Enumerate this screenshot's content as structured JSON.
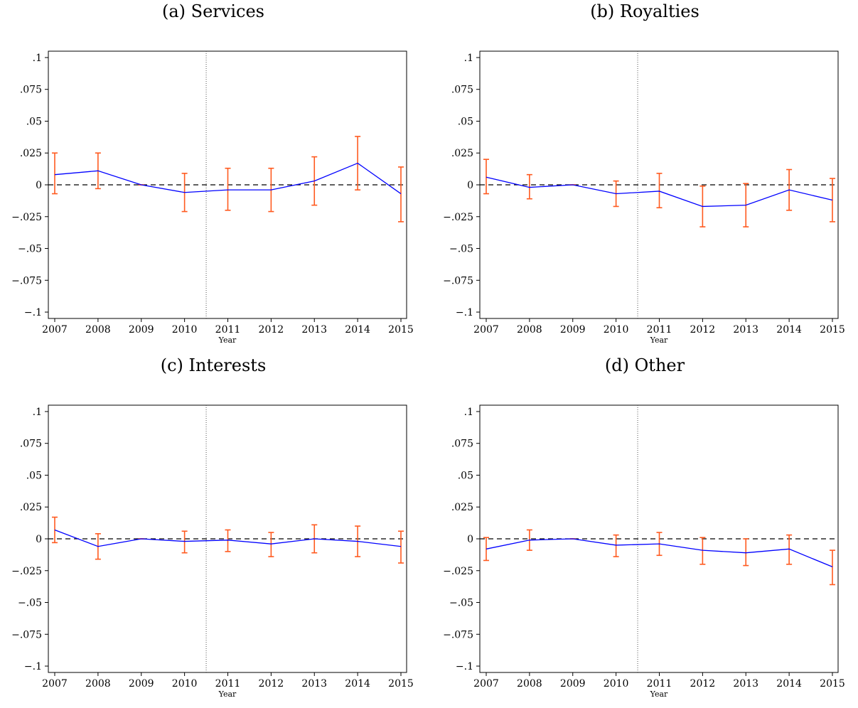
{
  "colors": {
    "line": "#0000ff",
    "error_bar": "#ff5a1f",
    "zero_line": "#000000",
    "event_line": "#555555"
  },
  "chart_data": [
    {
      "type": "line",
      "title": "(a) Services",
      "xlabel": "Year",
      "ylabel": "",
      "categories": [
        "2007",
        "2008",
        "2009",
        "2010",
        "2011",
        "2012",
        "2013",
        "2014",
        "2015"
      ],
      "y_ticks": [
        ".1",
        ".075",
        ".05",
        ".025",
        "0",
        "−.025",
        "−.05",
        "−.075",
        "−.1"
      ],
      "ylim": [
        -0.105,
        0.105
      ],
      "reference_lines": {
        "horizontal_dashed_at": 0,
        "vertical_dotted_between": [
          "2010",
          "2011"
        ]
      },
      "series": [
        {
          "values": [
            0.008,
            0.011,
            0.0,
            -0.006,
            -0.004,
            -0.004,
            0.003,
            0.017,
            -0.007
          ],
          "ci_low": [
            -0.007,
            -0.003,
            0.0,
            -0.021,
            -0.02,
            -0.021,
            -0.016,
            -0.004,
            -0.029
          ],
          "ci_high": [
            0.025,
            0.025,
            0.0,
            0.009,
            0.013,
            0.013,
            0.022,
            0.038,
            0.014
          ]
        }
      ],
      "grid": false,
      "legend": "none"
    },
    {
      "type": "line",
      "title": "(b) Royalties",
      "xlabel": "Year",
      "ylabel": "",
      "categories": [
        "2007",
        "2008",
        "2009",
        "2010",
        "2011",
        "2012",
        "2013",
        "2014",
        "2015"
      ],
      "y_ticks": [
        ".1",
        ".075",
        ".05",
        ".025",
        "0",
        "−.025",
        "−.05",
        "−.075",
        "−.1"
      ],
      "ylim": [
        -0.105,
        0.105
      ],
      "reference_lines": {
        "horizontal_dashed_at": 0,
        "vertical_dotted_between": [
          "2010",
          "2011"
        ]
      },
      "series": [
        {
          "values": [
            0.006,
            -0.002,
            0.0,
            -0.007,
            -0.005,
            -0.017,
            -0.016,
            -0.004,
            -0.012
          ],
          "ci_low": [
            -0.007,
            -0.011,
            0.0,
            -0.017,
            -0.018,
            -0.033,
            -0.033,
            -0.02,
            -0.029
          ],
          "ci_high": [
            0.02,
            0.008,
            0.0,
            0.003,
            0.009,
            -0.001,
            0.001,
            0.012,
            0.005
          ]
        }
      ],
      "grid": false,
      "legend": "none"
    },
    {
      "type": "line",
      "title": "(c) Interests",
      "xlabel": "Year",
      "ylabel": "",
      "categories": [
        "2007",
        "2008",
        "2009",
        "2010",
        "2011",
        "2012",
        "2013",
        "2014",
        "2015"
      ],
      "y_ticks": [
        ".1",
        ".075",
        ".05",
        ".025",
        "0",
        "−.025",
        "−.05",
        "−.075",
        "−.1"
      ],
      "ylim": [
        -0.105,
        0.105
      ],
      "reference_lines": {
        "horizontal_dashed_at": 0,
        "vertical_dotted_between": [
          "2010",
          "2011"
        ]
      },
      "series": [
        {
          "values": [
            0.007,
            -0.006,
            0.0,
            -0.002,
            -0.001,
            -0.004,
            0.0,
            -0.002,
            -0.006
          ],
          "ci_low": [
            -0.003,
            -0.016,
            0.0,
            -0.011,
            -0.01,
            -0.014,
            -0.011,
            -0.014,
            -0.019
          ],
          "ci_high": [
            0.017,
            0.004,
            0.0,
            0.006,
            0.007,
            0.005,
            0.011,
            0.01,
            0.006
          ]
        }
      ],
      "grid": false,
      "legend": "none"
    },
    {
      "type": "line",
      "title": "(d) Other",
      "xlabel": "Year",
      "ylabel": "",
      "categories": [
        "2007",
        "2008",
        "2009",
        "2010",
        "2011",
        "2012",
        "2013",
        "2014",
        "2015"
      ],
      "y_ticks": [
        ".1",
        ".075",
        ".05",
        ".025",
        "0",
        "−.025",
        "−.05",
        "−.075",
        "−.1"
      ],
      "ylim": [
        -0.105,
        0.105
      ],
      "reference_lines": {
        "horizontal_dashed_at": 0,
        "vertical_dotted_between": [
          "2010",
          "2011"
        ]
      },
      "series": [
        {
          "values": [
            -0.008,
            -0.001,
            0.0,
            -0.005,
            -0.004,
            -0.009,
            -0.011,
            -0.008,
            -0.022
          ],
          "ci_low": [
            -0.017,
            -0.009,
            0.0,
            -0.014,
            -0.013,
            -0.02,
            -0.021,
            -0.02,
            -0.036
          ],
          "ci_high": [
            0.001,
            0.007,
            0.0,
            0.003,
            0.005,
            0.001,
            0.0,
            0.003,
            -0.009
          ]
        }
      ],
      "grid": false,
      "legend": "none"
    }
  ]
}
